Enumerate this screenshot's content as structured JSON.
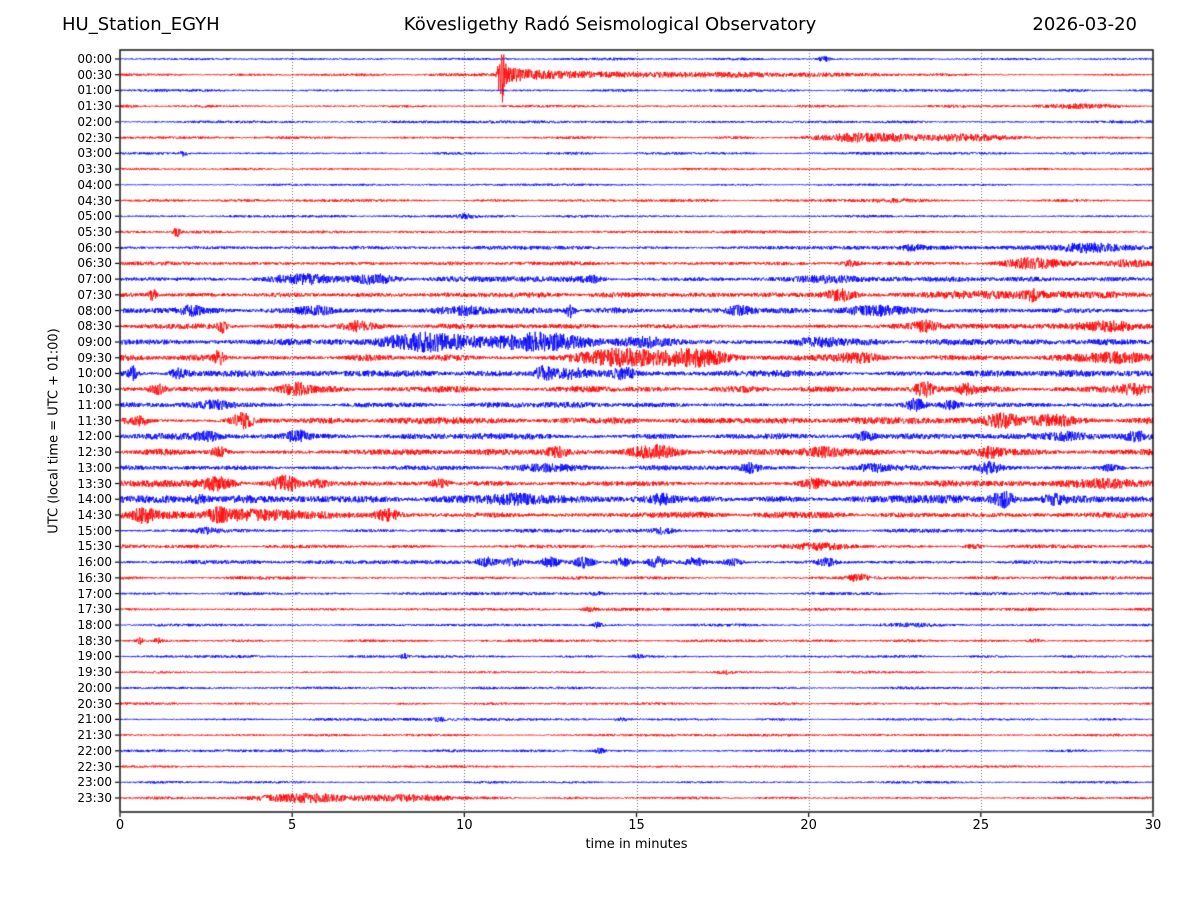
{
  "header": {
    "station": "HU_Station_EGYH",
    "observatory": "Kövesligethy Radó Seismological Observatory",
    "date": "2026-03-20"
  },
  "chart_data": {
    "type": "line",
    "variant": "helicorder-seismogram",
    "title": "Kövesligethy Radó Seismological Observatory",
    "station": "HU_Station_EGYH",
    "date": "2026-03-20",
    "xlabel": "time in minutes",
    "ylabel": "UTC (local time = UTC + 01:00)",
    "xlim": [
      0,
      30
    ],
    "x_ticks": [
      0,
      5,
      10,
      15,
      20,
      25,
      30
    ],
    "grid_minutes": [
      5,
      10,
      15,
      20,
      25
    ],
    "grid_style": "dotted-vertical",
    "trace_interval_minutes": 30,
    "colors": {
      "blue": "#0000ff",
      "red": "#ff0000",
      "frame": "#000000",
      "grid": "#6e6e6e"
    },
    "traces": [
      {
        "label": "00:00",
        "color": "blue",
        "amp": 1.0,
        "events": [
          [
            "s",
            20.2,
            20.7,
            2.5
          ]
        ]
      },
      {
        "label": "00:30",
        "color": "red",
        "amp": 1.0,
        "events": [
          [
            "s",
            10.95,
            11.2,
            30
          ],
          [
            "q",
            11.0,
            15.5,
            8
          ],
          [
            "b",
            12.5,
            21.5,
            2.0
          ]
        ]
      },
      {
        "label": "01:00",
        "color": "blue",
        "amp": 1.0,
        "events": []
      },
      {
        "label": "01:30",
        "color": "red",
        "amp": 1.0,
        "events": [
          [
            "b",
            26.3,
            29.0,
            1.8
          ]
        ]
      },
      {
        "label": "02:00",
        "color": "blue",
        "amp": 1.0,
        "events": []
      },
      {
        "label": "02:30",
        "color": "red",
        "amp": 1.0,
        "events": [
          [
            "b",
            20.2,
            23.2,
            4.5
          ],
          [
            "b",
            23.2,
            26.0,
            2.8
          ]
        ]
      },
      {
        "label": "03:00",
        "color": "blue",
        "amp": 1.0,
        "events": [
          [
            "s",
            1.7,
            2.0,
            2.2
          ]
        ]
      },
      {
        "label": "03:30",
        "color": "red",
        "amp": 0.9,
        "events": []
      },
      {
        "label": "04:00",
        "color": "blue",
        "amp": 0.9,
        "events": []
      },
      {
        "label": "04:30",
        "color": "red",
        "amp": 1.0,
        "events": [
          [
            "b",
            21.0,
            24.0,
            1.5
          ]
        ]
      },
      {
        "label": "05:00",
        "color": "blue",
        "amp": 1.0,
        "events": [
          [
            "b",
            9.7,
            10.4,
            1.8
          ]
        ]
      },
      {
        "label": "05:30",
        "color": "red",
        "amp": 1.0,
        "events": [
          [
            "s",
            1.5,
            1.8,
            4.5
          ]
        ]
      },
      {
        "label": "06:00",
        "color": "blue",
        "amp": 1.5,
        "events": [
          [
            "b",
            22.7,
            23.4,
            2.3
          ],
          [
            "b",
            27.2,
            29.3,
            4.0
          ]
        ]
      },
      {
        "label": "06:30",
        "color": "red",
        "amp": 1.5,
        "events": [
          [
            "b",
            20.9,
            21.5,
            2.4
          ],
          [
            "b",
            25.4,
            27.6,
            4.2
          ],
          [
            "b",
            28.4,
            30.0,
            3.2
          ]
        ]
      },
      {
        "label": "07:00",
        "color": "blue",
        "amp": 1.9,
        "events": [
          [
            "b",
            4.3,
            6.3,
            4.4
          ],
          [
            "b",
            6.6,
            8.2,
            4.2
          ],
          [
            "b",
            13.3,
            14.1,
            2.8
          ],
          [
            "b",
            19.3,
            22.0,
            2.4
          ]
        ]
      },
      {
        "label": "07:30",
        "color": "red",
        "amp": 1.9,
        "events": [
          [
            "s",
            0.8,
            1.1,
            5.0
          ],
          [
            "b",
            20.5,
            21.4,
            5.5
          ],
          [
            "b",
            22.5,
            30.0,
            2.8
          ],
          [
            "s",
            26.3,
            26.7,
            3.8
          ]
        ]
      },
      {
        "label": "08:00",
        "color": "blue",
        "amp": 2.2,
        "events": [
          [
            "b",
            1.7,
            2.4,
            3.4
          ],
          [
            "b",
            5.1,
            6.3,
            4.4
          ],
          [
            "b",
            9.2,
            10.7,
            3.4
          ],
          [
            "s",
            12.9,
            13.25,
            6.5
          ],
          [
            "b",
            17.6,
            18.4,
            4.4
          ],
          [
            "b",
            21.0,
            23.0,
            2.8
          ]
        ]
      },
      {
        "label": "08:30",
        "color": "red",
        "amp": 2.2,
        "events": [
          [
            "s",
            2.8,
            3.15,
            5.5
          ],
          [
            "b",
            6.4,
            7.3,
            3.4
          ],
          [
            "b",
            23.0,
            23.8,
            4.4
          ],
          [
            "b",
            27.4,
            30.0,
            3.2
          ]
        ]
      },
      {
        "label": "09:00",
        "color": "blue",
        "amp": 2.4,
        "events": [
          [
            "b",
            7.4,
            10.5,
            8.0
          ],
          [
            "b",
            10.5,
            13.7,
            7.0
          ],
          [
            "b",
            14.4,
            16.1,
            3.6
          ],
          [
            "b",
            19.4,
            21.1,
            3.0
          ]
        ]
      },
      {
        "label": "09:30",
        "color": "red",
        "amp": 2.4,
        "events": [
          [
            "s",
            2.7,
            3.05,
            6.5
          ],
          [
            "b",
            13.2,
            15.6,
            9.0
          ],
          [
            "b",
            15.6,
            17.8,
            7.5
          ],
          [
            "b",
            20.8,
            22.1,
            4.0
          ],
          [
            "b",
            28.0,
            30.0,
            3.4
          ]
        ]
      },
      {
        "label": "10:00",
        "color": "blue",
        "amp": 2.4,
        "events": [
          [
            "s",
            0.2,
            0.55,
            6.0
          ],
          [
            "b",
            1.4,
            2.0,
            4.4
          ],
          [
            "b",
            12.0,
            12.6,
            6.5
          ],
          [
            "b",
            12.6,
            13.6,
            4.0
          ],
          [
            "b",
            14.3,
            15.0,
            4.0
          ]
        ]
      },
      {
        "label": "10:30",
        "color": "red",
        "amp": 2.4,
        "events": [
          [
            "b",
            0.8,
            1.4,
            4.4
          ],
          [
            "b",
            4.6,
            5.6,
            5.5
          ],
          [
            "b",
            23.0,
            23.7,
            6.5
          ],
          [
            "b",
            24.3,
            24.9,
            4.0
          ],
          [
            "b",
            29.0,
            30.0,
            4.4
          ]
        ]
      },
      {
        "label": "11:00",
        "color": "blue",
        "amp": 2.0,
        "events": [
          [
            "b",
            2.3,
            3.3,
            3.4
          ],
          [
            "b",
            22.8,
            23.4,
            5.5
          ],
          [
            "b",
            23.8,
            24.4,
            3.4
          ]
        ]
      },
      {
        "label": "11:30",
        "color": "red",
        "amp": 2.4,
        "events": [
          [
            "b",
            0.3,
            0.9,
            3.4
          ],
          [
            "b",
            3.2,
            3.9,
            6.5
          ],
          [
            "b",
            25.1,
            26.2,
            5.5
          ],
          [
            "b",
            26.5,
            27.7,
            4.4
          ]
        ]
      },
      {
        "label": "12:00",
        "color": "blue",
        "amp": 2.4,
        "events": [
          [
            "b",
            2.2,
            2.8,
            3.4
          ],
          [
            "b",
            4.8,
            5.5,
            5.0
          ],
          [
            "b",
            21.3,
            22.0,
            4.4
          ],
          [
            "b",
            26.8,
            28.3,
            4.4
          ],
          [
            "b",
            29.1,
            30.0,
            4.4
          ]
        ]
      },
      {
        "label": "12:30",
        "color": "red",
        "amp": 2.6,
        "events": [
          [
            "b",
            2.6,
            3.2,
            4.4
          ],
          [
            "b",
            12.3,
            13.1,
            4.0
          ],
          [
            "b",
            14.7,
            16.3,
            5.0
          ],
          [
            "b",
            19.8,
            21.1,
            3.4
          ],
          [
            "b",
            25.0,
            25.6,
            3.4
          ]
        ]
      },
      {
        "label": "13:00",
        "color": "blue",
        "amp": 2.0,
        "events": [
          [
            "b",
            11.3,
            13.3,
            3.4
          ],
          [
            "b",
            18.0,
            18.6,
            4.4
          ],
          [
            "b",
            21.4,
            22.3,
            3.4
          ],
          [
            "b",
            24.9,
            25.6,
            4.4
          ],
          [
            "b",
            28.4,
            29.1,
            3.0
          ]
        ]
      },
      {
        "label": "13:30",
        "color": "red",
        "amp": 2.4,
        "events": [
          [
            "b",
            2.3,
            3.4,
            5.5
          ],
          [
            "b",
            4.4,
            5.2,
            6.5
          ],
          [
            "b",
            5.5,
            6.1,
            4.0
          ],
          [
            "b",
            9.0,
            9.6,
            3.4
          ],
          [
            "b",
            19.7,
            20.5,
            3.4
          ],
          [
            "b",
            27.8,
            29.6,
            4.4
          ]
        ]
      },
      {
        "label": "14:00",
        "color": "blue",
        "amp": 3.0,
        "events": [
          [
            "b",
            1.9,
            2.7,
            4.0
          ],
          [
            "b",
            10.8,
            12.7,
            4.4
          ],
          [
            "b",
            15.4,
            16.1,
            3.4
          ],
          [
            "b",
            25.3,
            26.0,
            7.0
          ],
          [
            "b",
            26.8,
            27.4,
            4.4
          ]
        ]
      },
      {
        "label": "14:30",
        "color": "red",
        "amp": 2.3,
        "events": [
          [
            "s",
            0.3,
            1.1,
            5.5
          ],
          [
            "b",
            1.5,
            6.0,
            3.2
          ],
          [
            "b",
            2.5,
            3.2,
            4.0
          ],
          [
            "b",
            7.4,
            8.2,
            5.0
          ]
        ]
      },
      {
        "label": "15:00",
        "color": "blue",
        "amp": 1.4,
        "events": [
          [
            "b",
            2.2,
            2.9,
            2.0
          ],
          [
            "b",
            15.5,
            16.1,
            2.4
          ]
        ]
      },
      {
        "label": "15:30",
        "color": "red",
        "amp": 1.4,
        "events": [
          [
            "b",
            19.4,
            21.3,
            3.4
          ],
          [
            "b",
            24.5,
            25.1,
            2.0
          ]
        ]
      },
      {
        "label": "16:00",
        "color": "blue",
        "amp": 1.4,
        "events": [
          [
            "b",
            10.3,
            11.0,
            4.5
          ],
          [
            "b",
            11.1,
            11.7,
            3.6
          ],
          [
            "b",
            12.2,
            12.8,
            4.0
          ],
          [
            "b",
            13.2,
            13.8,
            4.5
          ],
          [
            "b",
            14.3,
            14.9,
            4.0
          ],
          [
            "b",
            15.3,
            15.9,
            4.5
          ],
          [
            "b",
            16.4,
            17.0,
            4.0
          ],
          [
            "b",
            17.5,
            18.1,
            3.0
          ],
          [
            "b",
            20.2,
            20.8,
            3.4
          ]
        ]
      },
      {
        "label": "16:30",
        "color": "red",
        "amp": 1.2,
        "events": [
          [
            "b",
            21.1,
            21.8,
            3.0
          ]
        ]
      },
      {
        "label": "17:00",
        "color": "blue",
        "amp": 1.2,
        "events": [
          [
            "b",
            13.6,
            14.1,
            1.8
          ]
        ]
      },
      {
        "label": "17:30",
        "color": "red",
        "amp": 1.2,
        "events": [
          [
            "b",
            13.4,
            13.9,
            2.0
          ]
        ]
      },
      {
        "label": "18:00",
        "color": "blue",
        "amp": 1.0,
        "events": [
          [
            "s",
            13.7,
            14.05,
            2.5
          ],
          [
            "b",
            22.0,
            24.0,
            1.4
          ]
        ]
      },
      {
        "label": "18:30",
        "color": "red",
        "amp": 1.0,
        "events": [
          [
            "s",
            0.4,
            0.75,
            3.0
          ],
          [
            "s",
            0.95,
            1.25,
            2.5
          ],
          [
            "b",
            26.3,
            26.8,
            1.7
          ]
        ]
      },
      {
        "label": "19:00",
        "color": "blue",
        "amp": 1.0,
        "events": [
          [
            "s",
            8.1,
            8.45,
            2.5
          ],
          [
            "b",
            14.8,
            15.3,
            1.7
          ]
        ]
      },
      {
        "label": "19:30",
        "color": "red",
        "amp": 0.9,
        "events": [
          [
            "b",
            17.3,
            17.8,
            1.5
          ]
        ]
      },
      {
        "label": "20:00",
        "color": "blue",
        "amp": 1.0,
        "events": []
      },
      {
        "label": "20:30",
        "color": "red",
        "amp": 0.9,
        "events": []
      },
      {
        "label": "21:00",
        "color": "blue",
        "amp": 1.0,
        "events": [
          [
            "s",
            9.1,
            9.45,
            2.0
          ],
          [
            "b",
            14.3,
            14.8,
            1.6
          ]
        ]
      },
      {
        "label": "21:30",
        "color": "red",
        "amp": 0.9,
        "events": []
      },
      {
        "label": "22:00",
        "color": "blue",
        "amp": 1.0,
        "events": [
          [
            "s",
            13.7,
            14.15,
            2.4
          ]
        ]
      },
      {
        "label": "22:30",
        "color": "red",
        "amp": 0.9,
        "events": []
      },
      {
        "label": "23:00",
        "color": "blue",
        "amp": 1.0,
        "events": []
      },
      {
        "label": "23:30",
        "color": "red",
        "amp": 1.0,
        "events": [
          [
            "b",
            3.8,
            6.9,
            4.0
          ],
          [
            "b",
            6.9,
            9.7,
            3.4
          ]
        ]
      }
    ]
  }
}
